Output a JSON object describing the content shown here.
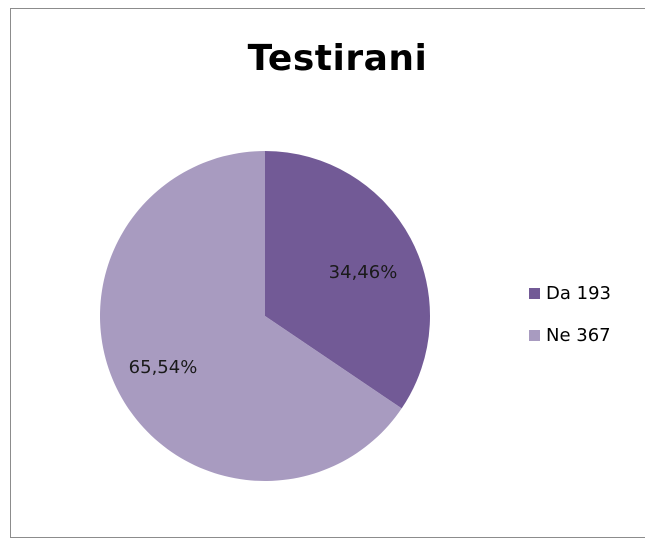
{
  "chart_data": {
    "type": "pie",
    "title": "Testirani",
    "slices": [
      {
        "label": "Da 193",
        "value": 193,
        "percent_label": "34,46%",
        "color": "#725a96"
      },
      {
        "label": "Ne 367",
        "value": 367,
        "percent_label": "65,54%",
        "color": "#a89bc0"
      }
    ],
    "legend_position": "right"
  }
}
